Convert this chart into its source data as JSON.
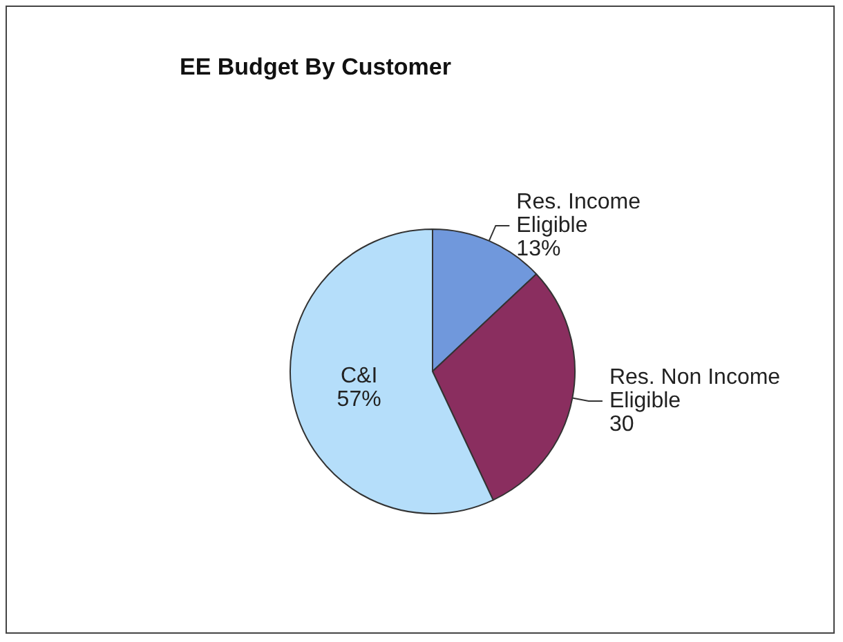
{
  "chart_data": {
    "type": "pie",
    "title": "EE Budget By Customer",
    "categories": [
      "Res. Income Eligible",
      "Res. Non Income Eligible",
      "C&I"
    ],
    "values": [
      13,
      30,
      57
    ],
    "colors": [
      "#7098dc",
      "#8a2e5f",
      "#b5defa"
    ],
    "value_labels": [
      "13%",
      "30",
      "57%"
    ],
    "legend": false
  }
}
